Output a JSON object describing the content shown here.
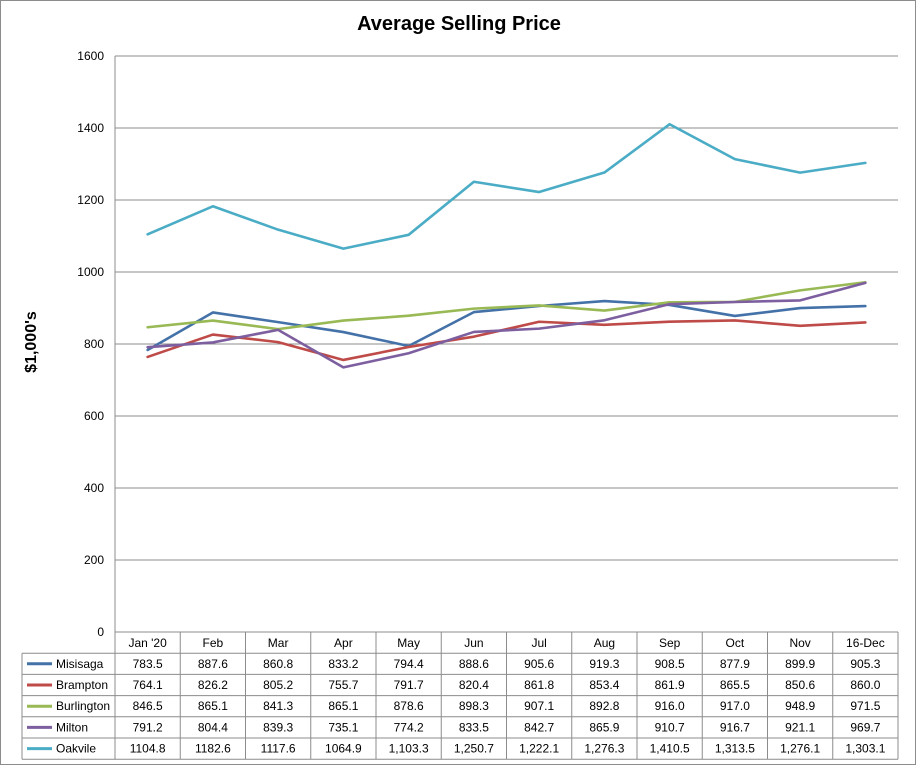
{
  "chart_data": {
    "type": "line",
    "title": "Average Selling Price",
    "ylabel": "$1,000's",
    "xlabel": "",
    "ylim": [
      0,
      1600
    ],
    "yticks": [
      "0",
      "200",
      "400",
      "600",
      "800",
      "1000",
      "1200",
      "1400",
      "1600"
    ],
    "grid": true,
    "legend": "data-table-below",
    "categories": [
      "Jan '20",
      "Feb",
      "Mar",
      "Apr",
      "May",
      "Jun",
      "Jul",
      "Aug",
      "Sep",
      "Oct",
      "Nov",
      "16-Dec"
    ],
    "series": [
      {
        "name": "Misisaga",
        "color": "#4472a8",
        "values": [
          783.5,
          887.6,
          860.8,
          833.2,
          794.4,
          888.6,
          905.6,
          919.3,
          908.5,
          877.9,
          899.9,
          905.3
        ],
        "labels": [
          "783.5",
          "887.6",
          "860.8",
          "833.2",
          "794.4",
          "888.6",
          "905.6",
          "919.3",
          "908.5",
          "877.9",
          "899.9",
          "905.3"
        ]
      },
      {
        "name": "Brampton",
        "color": "#be4b48",
        "values": [
          764.1,
          826.2,
          805.2,
          755.7,
          791.7,
          820.4,
          861.8,
          853.4,
          861.9,
          865.5,
          850.6,
          860.0
        ],
        "labels": [
          "764.1",
          "826.2",
          "805.2",
          "755.7",
          "791.7",
          "820.4",
          "861.8",
          "853.4",
          "861.9",
          "865.5",
          "850.6",
          "860.0"
        ]
      },
      {
        "name": "Burlington",
        "color": "#98b954",
        "values": [
          846.5,
          865.1,
          841.3,
          865.1,
          878.6,
          898.3,
          907.1,
          892.8,
          916.0,
          917.0,
          948.9,
          971.5
        ],
        "labels": [
          "846.5",
          "865.1",
          "841.3",
          "865.1",
          "878.6",
          "898.3",
          "907.1",
          "892.8",
          "916.0",
          "917.0",
          "948.9",
          "971.5"
        ]
      },
      {
        "name": "Milton",
        "color": "#7d5fa0",
        "values": [
          791.2,
          804.4,
          839.3,
          735.1,
          774.2,
          833.5,
          842.7,
          865.9,
          910.7,
          916.7,
          921.1,
          969.7
        ],
        "labels": [
          "791.2",
          "804.4",
          "839.3",
          "735.1",
          "774.2",
          "833.5",
          "842.7",
          "865.9",
          "910.7",
          "916.7",
          "921.1",
          "969.7"
        ]
      },
      {
        "name": "Oakvile",
        "color": "#4bacc6",
        "values": [
          1104.8,
          1182.6,
          1117.6,
          1064.9,
          1103.3,
          1250.7,
          1222.1,
          1276.3,
          1410.5,
          1313.5,
          1276.1,
          1303.1
        ],
        "labels": [
          "1104.8",
          "1182.6",
          "1117.6",
          "1064.9",
          "1,103.3",
          "1,250.7",
          "1,222.1",
          "1,276.3",
          "1,410.5",
          "1,313.5",
          "1,276.1",
          "1,303.1"
        ]
      }
    ]
  }
}
